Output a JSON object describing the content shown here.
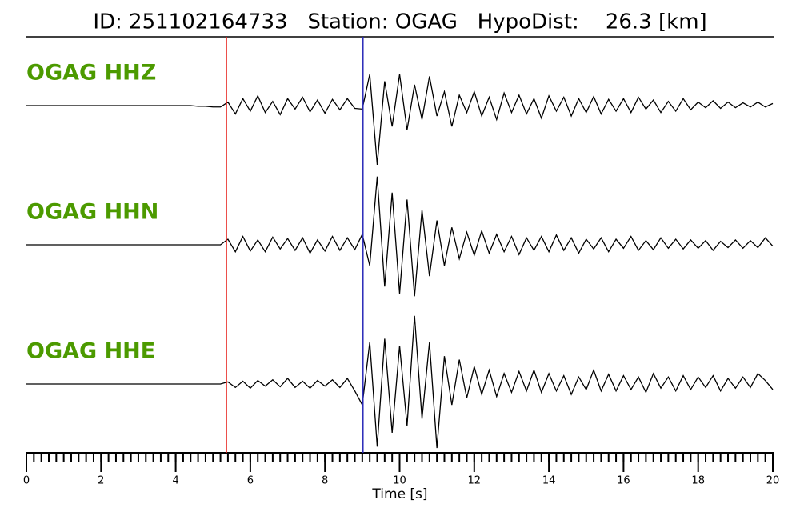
{
  "chart_data": {
    "type": "line",
    "title": "ID: 251102164733   Station: OGAG   HypoDist:    26.3 [km]",
    "x_label": "Time [s]",
    "xlim": [
      0,
      20
    ],
    "xticks": [
      0,
      2,
      4,
      6,
      8,
      10,
      12,
      14,
      16,
      18,
      20
    ],
    "xminorticks": [
      0,
      0.2,
      0.4,
      0.6,
      0.8,
      1,
      1.2,
      1.4,
      1.6,
      1.8,
      2,
      2.2,
      2.4,
      2.6,
      2.8,
      3,
      3.2,
      3.4,
      3.6,
      3.8,
      4,
      4.2,
      4.4,
      4.6,
      4.8,
      5,
      5.2,
      5.4,
      5.6,
      5.8,
      6,
      6.2,
      6.4,
      6.6,
      6.8,
      7,
      7.2,
      7.4,
      7.6,
      7.8,
      8,
      8.2,
      8.4,
      8.6,
      8.8,
      9,
      9.2,
      9.4,
      9.6,
      9.8,
      10,
      10.2,
      10.4,
      10.6,
      10.8,
      11,
      11.2,
      11.4,
      11.6,
      11.8,
      12,
      12.2,
      12.4,
      12.6,
      12.8,
      13,
      13.2,
      13.4,
      13.6,
      13.8,
      14,
      14.2,
      14.4,
      14.6,
      14.8,
      15,
      15.2,
      15.4,
      15.6,
      15.8,
      16,
      16.2,
      16.4,
      16.6,
      16.8,
      17,
      17.2,
      17.4,
      17.6,
      17.8,
      18,
      18.2,
      18.4,
      18.6,
      18.8,
      19,
      19.2,
      19.4,
      19.6,
      19.8,
      20
    ],
    "ylim": [
      -1,
      1
    ],
    "label_color": "#4c9a00",
    "vlines": [
      {
        "x": 5.36,
        "color": "#e8211c"
      },
      {
        "x": 9.02,
        "color": "#2a2ab8"
      }
    ],
    "x": [
      0,
      0.2,
      0.4,
      0.6,
      0.8,
      1,
      1.2,
      1.4,
      1.6,
      1.8,
      2,
      2.2,
      2.4,
      2.6,
      2.8,
      3,
      3.2,
      3.4,
      3.6,
      3.8,
      4,
      4.2,
      4.4,
      4.6,
      4.8,
      5,
      5.2,
      5.4,
      5.6,
      5.8,
      6,
      6.2,
      6.4,
      6.6,
      6.8,
      7,
      7.2,
      7.4,
      7.6,
      7.8,
      8,
      8.2,
      8.4,
      8.6,
      8.8,
      9,
      9.2,
      9.4,
      9.6,
      9.8,
      10,
      10.2,
      10.4,
      10.6,
      10.8,
      11,
      11.2,
      11.4,
      11.6,
      11.8,
      12,
      12.2,
      12.4,
      12.6,
      12.8,
      13,
      13.2,
      13.4,
      13.6,
      13.8,
      14,
      14.2,
      14.4,
      14.6,
      14.8,
      15,
      15.2,
      15.4,
      15.6,
      15.8,
      16,
      16.2,
      16.4,
      16.6,
      16.8,
      17,
      17.2,
      17.4,
      17.6,
      17.8,
      18,
      18.2,
      18.4,
      18.6,
      18.8,
      19,
      19.2,
      19.4,
      19.6,
      19.8,
      20
    ],
    "series": [
      {
        "name": "OGAG HHZ",
        "color": "#000000",
        "values": [
          0,
          0,
          0,
          0,
          0,
          0,
          0,
          0,
          0,
          0,
          0,
          0,
          0,
          0,
          0,
          0,
          0,
          0,
          0,
          0,
          0,
          0,
          0,
          -0.01,
          -0.01,
          -0.02,
          -0.02,
          0.05,
          -0.12,
          0.1,
          -0.08,
          0.14,
          -0.1,
          0.06,
          -0.13,
          0.1,
          -0.05,
          0.12,
          -0.09,
          0.08,
          -0.11,
          0.09,
          -0.06,
          0.1,
          -0.04,
          -0.05,
          0.45,
          -0.85,
          0.35,
          -0.3,
          0.45,
          -0.35,
          0.3,
          -0.2,
          0.42,
          -0.15,
          0.2,
          -0.3,
          0.15,
          -0.1,
          0.2,
          -0.15,
          0.12,
          -0.2,
          0.18,
          -0.1,
          0.15,
          -0.12,
          0.1,
          -0.18,
          0.14,
          -0.08,
          0.12,
          -0.15,
          0.1,
          -0.1,
          0.13,
          -0.12,
          0.09,
          -0.08,
          0.1,
          -0.1,
          0.12,
          -0.05,
          0.08,
          -0.1,
          0.06,
          -0.08,
          0.1,
          -0.06,
          0.05,
          -0.03,
          0.07,
          -0.04,
          0.05,
          -0.03,
          0.04,
          -0.02,
          0.05,
          -0.02,
          0.03
        ]
      },
      {
        "name": "OGAG HHN",
        "color": "#000000",
        "values": [
          0,
          0,
          0,
          0,
          0,
          0,
          0,
          0,
          0,
          0,
          0,
          0,
          0,
          0,
          0,
          0,
          0,
          0,
          0,
          0,
          0,
          0,
          0,
          0,
          0,
          0,
          0,
          0.08,
          -0.1,
          0.12,
          -0.09,
          0.07,
          -0.1,
          0.11,
          -0.06,
          0.09,
          -0.08,
          0.1,
          -0.12,
          0.07,
          -0.09,
          0.12,
          -0.08,
          0.1,
          -0.07,
          0.15,
          -0.3,
          0.98,
          -0.6,
          0.75,
          -0.7,
          0.65,
          -0.74,
          0.5,
          -0.45,
          0.35,
          -0.3,
          0.25,
          -0.2,
          0.18,
          -0.15,
          0.2,
          -0.12,
          0.15,
          -0.1,
          0.12,
          -0.14,
          0.1,
          -0.08,
          0.12,
          -0.1,
          0.14,
          -0.08,
          0.1,
          -0.12,
          0.08,
          -0.06,
          0.1,
          -0.1,
          0.08,
          -0.05,
          0.12,
          -0.08,
          0.06,
          -0.07,
          0.1,
          -0.05,
          0.08,
          -0.06,
          0.07,
          -0.05,
          0.06,
          -0.08,
          0.05,
          -0.04,
          0.07,
          -0.05,
          0.06,
          -0.04,
          0.1,
          -0.02
        ]
      },
      {
        "name": "OGAG HHE",
        "color": "#000000",
        "values": [
          0,
          0,
          0,
          0,
          0,
          0,
          0,
          0,
          0,
          0,
          0,
          0,
          0,
          0,
          0,
          0,
          0,
          0,
          0,
          0,
          0,
          0,
          0,
          0,
          0,
          0,
          0,
          0.03,
          -0.05,
          0.04,
          -0.06,
          0.05,
          -0.03,
          0.06,
          -0.04,
          0.08,
          -0.05,
          0.04,
          -0.06,
          0.05,
          -0.03,
          0.06,
          -0.05,
          0.08,
          -0.1,
          -0.3,
          0.6,
          -0.9,
          0.65,
          -0.7,
          0.55,
          -0.6,
          0.98,
          -0.5,
          0.6,
          -0.92,
          0.4,
          -0.3,
          0.35,
          -0.2,
          0.25,
          -0.15,
          0.2,
          -0.18,
          0.15,
          -0.12,
          0.18,
          -0.1,
          0.2,
          -0.12,
          0.15,
          -0.1,
          0.12,
          -0.15,
          0.1,
          -0.08,
          0.2,
          -0.1,
          0.14,
          -0.1,
          0.12,
          -0.08,
          0.1,
          -0.12,
          0.15,
          -0.06,
          0.1,
          -0.1,
          0.12,
          -0.08,
          0.1,
          -0.05,
          0.12,
          -0.1,
          0.08,
          -0.06,
          0.1,
          -0.05,
          0.15,
          0.05,
          -0.08
        ]
      }
    ]
  }
}
